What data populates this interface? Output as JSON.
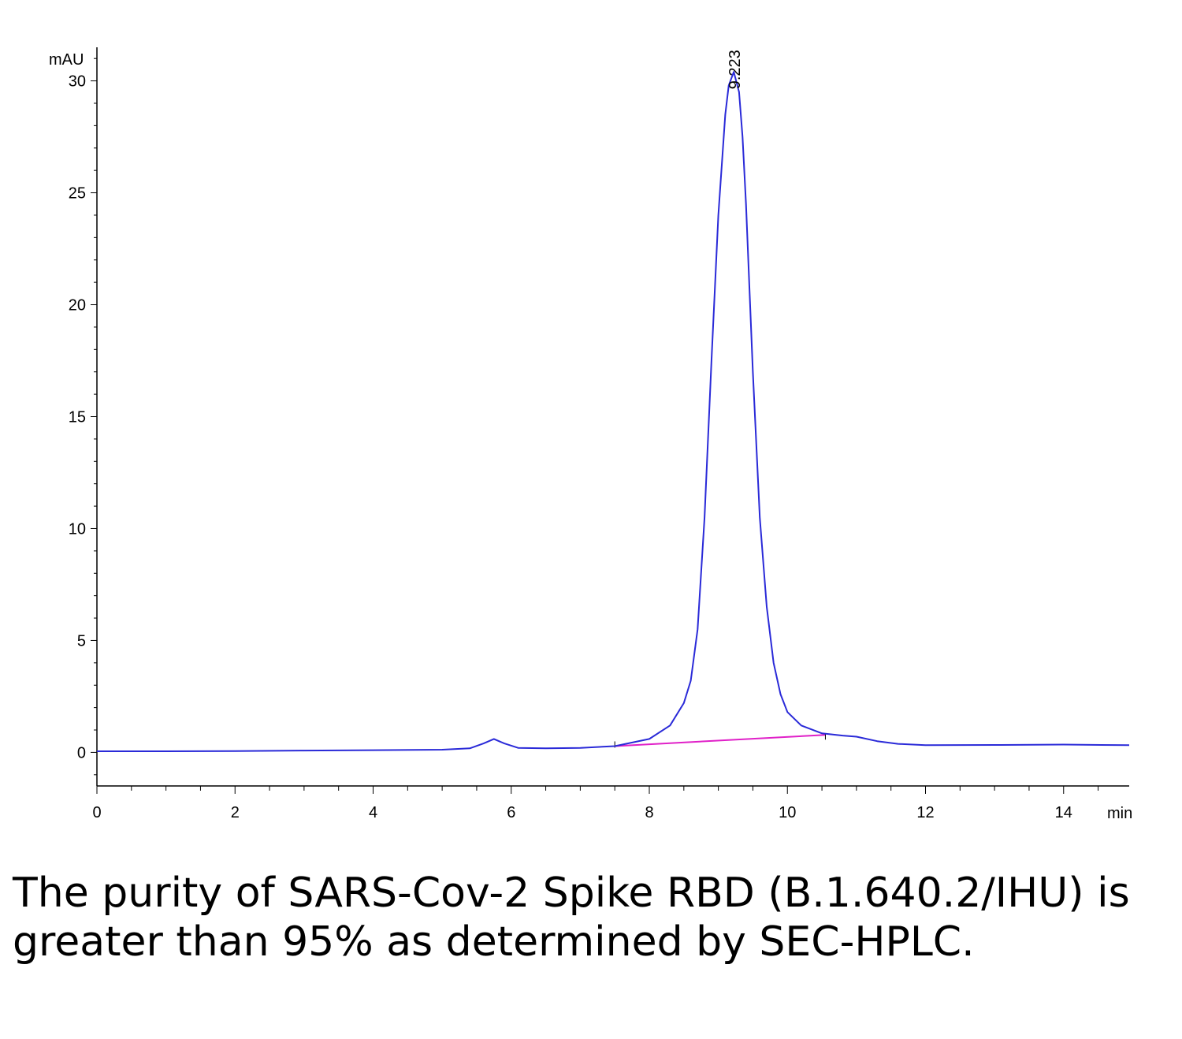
{
  "chart_data": {
    "type": "line",
    "xlabel": "min",
    "ylabel": "mAU",
    "xlim": [
      0,
      14.95
    ],
    "ylim": [
      -1.5,
      31.5
    ],
    "x_ticks": [
      0,
      2,
      4,
      6,
      8,
      10,
      12,
      14
    ],
    "y_ticks": [
      0,
      5,
      10,
      15,
      20,
      25,
      30
    ],
    "grid": false,
    "series": [
      {
        "color": "#2a2ad8",
        "x": [
          0,
          1,
          2,
          3,
          4,
          5,
          5.4,
          5.6,
          5.75,
          5.9,
          6.1,
          6.5,
          7,
          7.5,
          8,
          8.3,
          8.5,
          8.6,
          8.7,
          8.8,
          8.9,
          9.0,
          9.1,
          9.15,
          9.223,
          9.3,
          9.35,
          9.4,
          9.5,
          9.6,
          9.7,
          9.8,
          9.9,
          10.0,
          10.2,
          10.5,
          10.8,
          11.0,
          11.3,
          11.6,
          12,
          13,
          14,
          14.95
        ],
        "y": [
          0.05,
          0.05,
          0.06,
          0.08,
          0.1,
          0.12,
          0.18,
          0.4,
          0.6,
          0.4,
          0.2,
          0.18,
          0.2,
          0.28,
          0.6,
          1.2,
          2.2,
          3.2,
          5.5,
          10.5,
          17.5,
          24.0,
          28.5,
          29.8,
          30.4,
          29.5,
          27.5,
          24.5,
          17.0,
          10.5,
          6.5,
          4.0,
          2.6,
          1.8,
          1.2,
          0.85,
          0.75,
          0.7,
          0.5,
          0.38,
          0.32,
          0.33,
          0.35,
          0.32
        ]
      }
    ],
    "baseline": {
      "color": "#e020c8",
      "x": [
        7.5,
        10.55
      ],
      "y": [
        0.28,
        0.78
      ]
    },
    "peak_label": {
      "text": "9.223",
      "x": 9.223,
      "y": 30.4
    }
  },
  "caption": "The purity of SARS-Cov-2 Spike RBD (B.1.640.2/IHU) is greater than 95% as determined by SEC-HPLC."
}
